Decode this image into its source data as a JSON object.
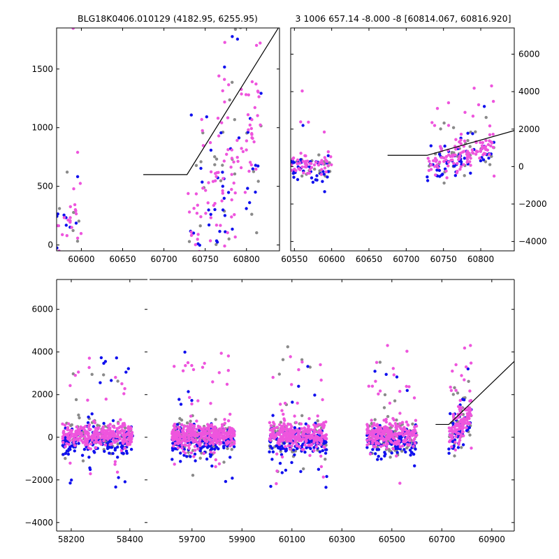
{
  "chart_data": [
    {
      "panel": "top-left",
      "type": "scatter",
      "title": "BLG18K0406.010129 (4182.95, 6255.95)",
      "xlim": [
        60570,
        60840
      ],
      "ylim": [
        -50,
        1850
      ],
      "xticks": [
        60600,
        60650,
        60700,
        60750,
        60800
      ],
      "yticks": [
        0,
        500,
        1000,
        1500
      ],
      "yaxis_side": "left",
      "grid": false,
      "segments": [
        {
          "color": "#000000",
          "start": 60675,
          "end": 60840,
          "y0": 600,
          "change": 60728,
          "slope": 11.3
        }
      ]
    },
    {
      "panel": "top-right",
      "type": "scatter",
      "title": "3 1006 657.14 -8.000 -8 [60814.067, 60816.920]",
      "xlim": [
        60545,
        60845
      ],
      "ylim": [
        -4500,
        7400
      ],
      "xticks": [
        60550,
        60600,
        60650,
        60700,
        60750,
        60800
      ],
      "yticks": [
        -4000,
        -2000,
        0,
        2000,
        4000,
        6000
      ],
      "yaxis_side": "right",
      "grid": false,
      "segments": [
        {
          "color": "#000000",
          "start": 60675,
          "end": 60845,
          "y0": 600,
          "change": 60728,
          "slope": 11.3
        }
      ]
    },
    {
      "panel": "bottom",
      "type": "scatter",
      "title": "",
      "ylim": [
        -4400,
        7400
      ],
      "yticks": [
        -4000,
        -2000,
        0,
        2000,
        4000,
        6000
      ],
      "yaxis_side": "left",
      "grid": false,
      "broken_x": [
        {
          "xlim": [
            58150,
            58460
          ],
          "xticks": [
            58200,
            58400
          ]
        },
        {
          "xlim": [
            59530,
            60990
          ],
          "xticks": [
            59700,
            59900,
            60100,
            60300,
            60500,
            60700,
            60900
          ]
        }
      ],
      "segments": [
        {
          "color": "#000000",
          "start": 60675,
          "end": 60990,
          "y0": 600,
          "change": 60728,
          "slope": 11.3
        }
      ]
    }
  ],
  "series_colors": {
    "magenta": "#ee55dd",
    "blue": "#1010ee",
    "gray": "#8a8a8a"
  },
  "observing_seasons": [
    {
      "start": 58170,
      "end": 58410,
      "sigma": 250
    },
    {
      "start": 59620,
      "end": 59870,
      "sigma": 260
    },
    {
      "start": 60010,
      "end": 60240,
      "sigma": 270
    },
    {
      "start": 60400,
      "end": 60600,
      "sigma": 280
    },
    {
      "start": 60728,
      "end": 60818,
      "sigma": 330
    }
  ]
}
